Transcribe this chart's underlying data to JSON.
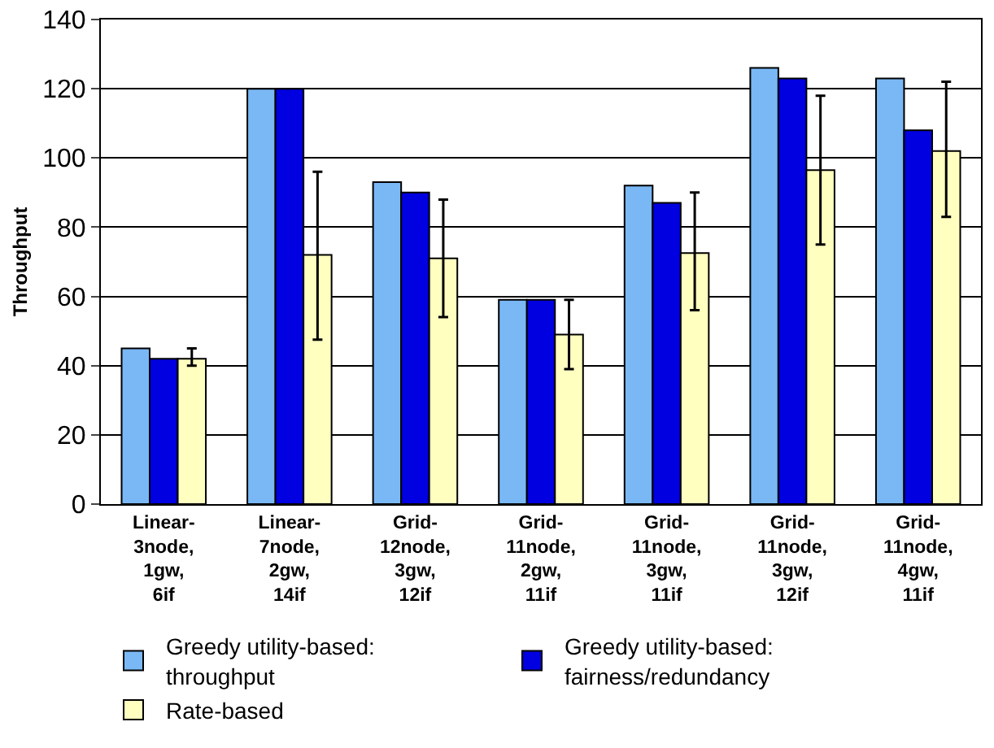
{
  "chart_data": {
    "type": "bar",
    "ylabel": "Throughput",
    "categories": [
      "Linear-3node, 1gw, 6if",
      "Linear-7node, 2gw, 14if",
      "Grid-12node, 3gw, 12if",
      "Grid-11node, 2gw, 11if",
      "Grid-11node, 3gw, 11if",
      "Grid-11node, 3gw, 12if",
      "Grid-11node, 4gw, 11if"
    ],
    "series": [
      {
        "name": "Greedy utility-based: throughput",
        "color": "#7ab8f5",
        "values": [
          45,
          120,
          93,
          59,
          92,
          126,
          123
        ]
      },
      {
        "name": "Greedy utility-based: fairness/redundancy",
        "color": "#0000e0",
        "values": [
          42,
          120,
          90,
          59,
          87,
          123,
          108
        ]
      },
      {
        "name": "Rate-based",
        "color": "#ffffc0",
        "values": [
          42,
          72,
          71,
          49,
          72.5,
          96.5,
          102
        ],
        "errors": [
          [
            40,
            45
          ],
          [
            47.5,
            96
          ],
          [
            54,
            88
          ],
          [
            39,
            59
          ],
          [
            56,
            90
          ],
          [
            75,
            118
          ],
          [
            83,
            122
          ]
        ]
      }
    ],
    "ylim": [
      0,
      140
    ],
    "yticks": [
      0,
      20,
      40,
      60,
      80,
      100,
      120,
      140
    ],
    "grid": "y",
    "legend": "bottom"
  }
}
